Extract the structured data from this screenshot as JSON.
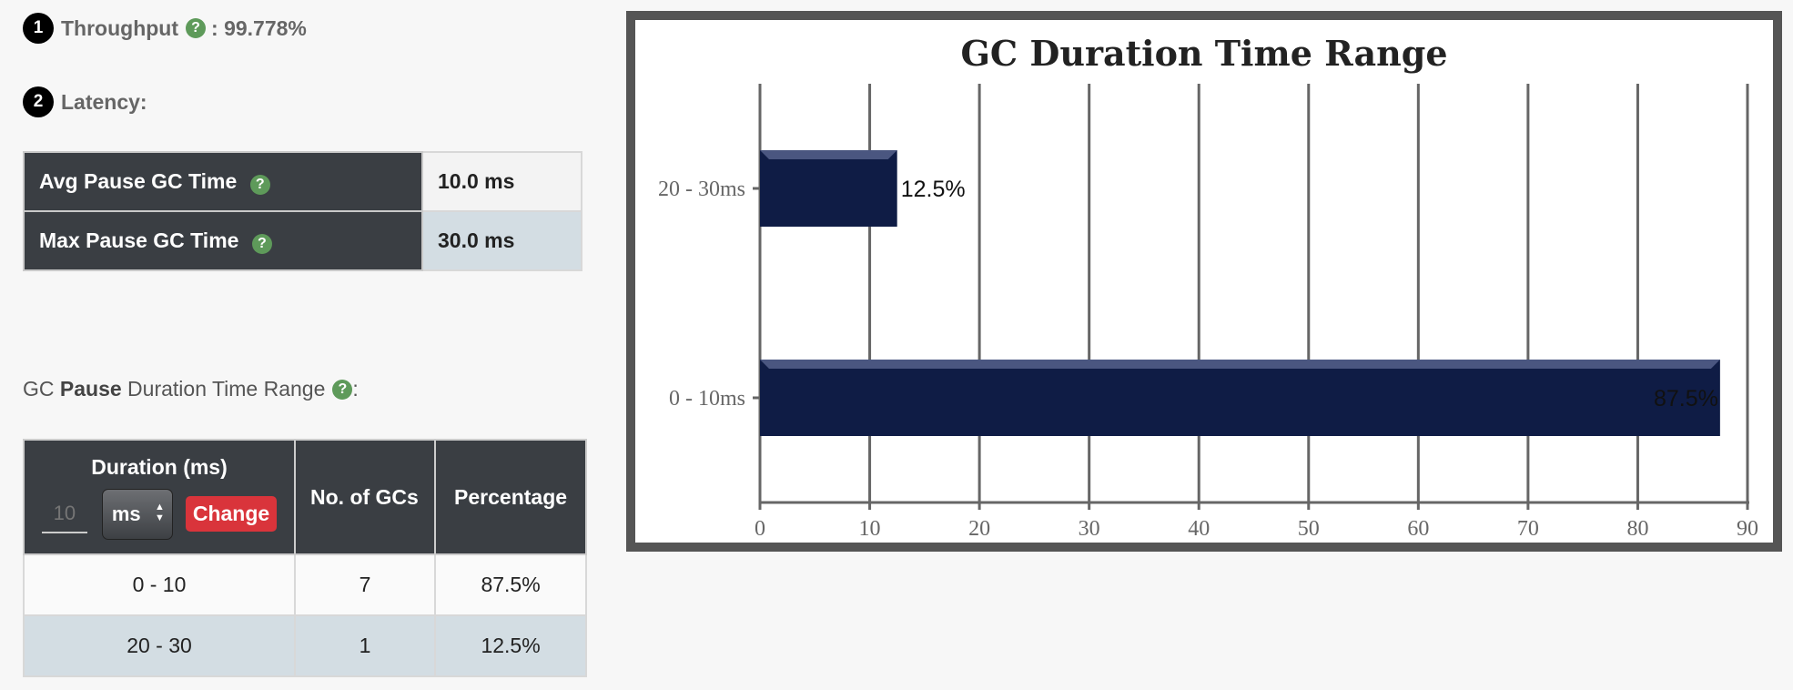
{
  "throughput": {
    "badge": "1",
    "label": "Throughput",
    "sep": ": 99.778%"
  },
  "latency": {
    "badge": "2",
    "label": "Latency:",
    "rows": [
      {
        "label": "Avg Pause GC Time",
        "value": "10.0 ms"
      },
      {
        "label": "Max Pause GC Time",
        "value": "30.0 ms"
      }
    ]
  },
  "gc_caption": {
    "prefix": "GC ",
    "bold": "Pause",
    "suffix": " Duration Time Range",
    "colon": ":"
  },
  "duration_table": {
    "headers": {
      "duration": "Duration (ms)",
      "gcs": "No. of GCs",
      "percentage": "Percentage"
    },
    "input_placeholder": "10",
    "unit": "ms",
    "change_label": "Change",
    "rows": [
      {
        "range": "0 - 10",
        "count": "7",
        "percentage": "87.5%"
      },
      {
        "range": "20 - 30",
        "count": "1",
        "percentage": "12.5%"
      }
    ]
  },
  "help_glyph": "?",
  "colors": {
    "bar": "#0f1c45",
    "header_bg": "#3a3e43",
    "help": "#5e9a5a",
    "change": "#d9343b"
  },
  "chart_data": {
    "type": "bar",
    "orientation": "horizontal",
    "title": "GC Duration Time Range",
    "categories": [
      "20 - 30ms",
      "0 - 10ms"
    ],
    "values": [
      12.5,
      87.5
    ],
    "data_labels": [
      "12.5%",
      "87.5%"
    ],
    "xlim": [
      0,
      90
    ],
    "xticks": [
      0,
      10,
      20,
      30,
      40,
      50,
      60,
      70,
      80,
      90
    ],
    "grid": true
  }
}
